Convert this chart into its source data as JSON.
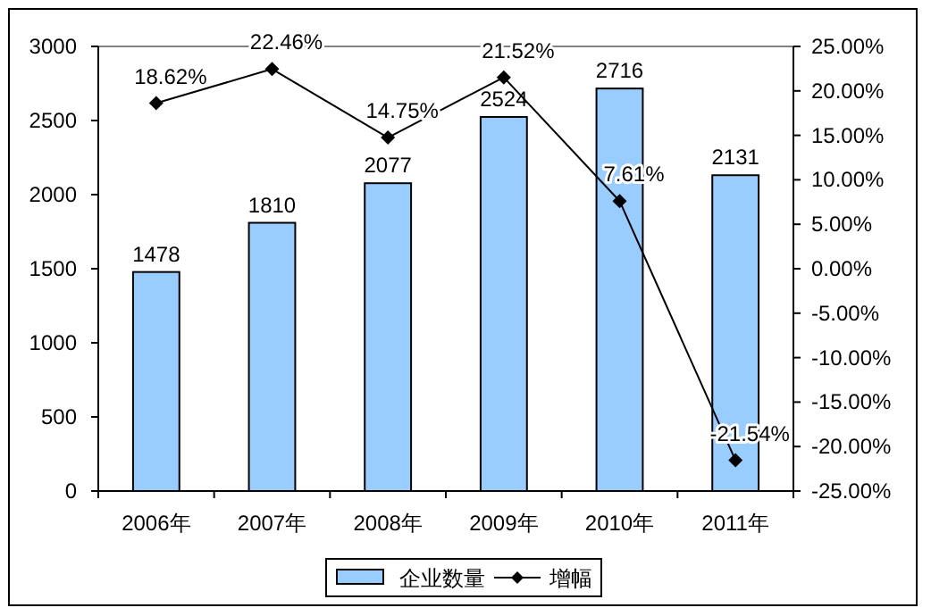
{
  "chart_data": {
    "type": "bar",
    "categories": [
      "2006年",
      "2007年",
      "2008年",
      "2009年",
      "2010年",
      "2011年"
    ],
    "series": [
      {
        "name": "企业数量",
        "color": "#99ccff",
        "values": [
          1478,
          1810,
          2077,
          2524,
          2716,
          2131
        ],
        "value_labels": [
          "1478",
          "1810",
          "2077",
          "2524",
          "2716",
          "2131"
        ]
      },
      {
        "name": "增幅",
        "type": "line",
        "axis": "y2",
        "color": "#000000",
        "values": [
          18.62,
          22.46,
          14.75,
          21.52,
          7.61,
          -21.54
        ],
        "value_labels": [
          "18.62%",
          "22.46%",
          "14.75%",
          "21.52%",
          "7.61%",
          "-21.54%"
        ]
      }
    ],
    "ylim": [
      0,
      3000
    ],
    "yticks": [
      0,
      500,
      1000,
      1500,
      2000,
      2500,
      3000
    ],
    "y2lim": [
      -25,
      25
    ],
    "y2ticks": [
      {
        "value": -25,
        "label": "-25.00%"
      },
      {
        "value": -20,
        "label": "-20.00%"
      },
      {
        "value": -15,
        "label": "-15.00%"
      },
      {
        "value": -10,
        "label": "-10.00%"
      },
      {
        "value": -5,
        "label": "-5.00%"
      },
      {
        "value": 0,
        "label": "0.00%"
      },
      {
        "value": 5,
        "label": "5.00%"
      },
      {
        "value": 10,
        "label": "10.00%"
      },
      {
        "value": 15,
        "label": "15.00%"
      },
      {
        "value": 20,
        "label": "20.00%"
      },
      {
        "value": 25,
        "label": "25.00%"
      }
    ],
    "marker": "diamond",
    "legend": "bottom",
    "grid": false
  }
}
